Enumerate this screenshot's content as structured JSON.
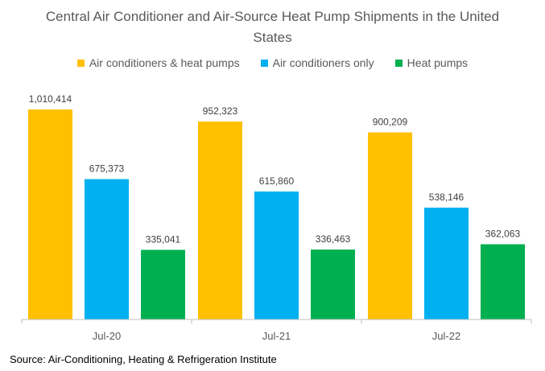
{
  "chart_data": {
    "type": "bar",
    "title": "Central Air Conditioner and Air-Source Heat Pump Shipments in the United States",
    "categories": [
      "Jul-20",
      "Jul-21",
      "Jul-22"
    ],
    "series": [
      {
        "name": "Air conditioners & heat pumps",
        "color": "#FFC000",
        "values": [
          1010414,
          952323,
          900209
        ],
        "labels": [
          "1,010,414",
          "952,323",
          "900,209"
        ]
      },
      {
        "name": "Air conditioners only",
        "color": "#00B0F0",
        "values": [
          675373,
          615860,
          538146
        ],
        "labels": [
          "675,373",
          "615,860",
          "538,146"
        ]
      },
      {
        "name": "Heat pumps",
        "color": "#00B050",
        "values": [
          335041,
          336463,
          362063
        ],
        "labels": [
          "335,041",
          "336,463",
          "362,063"
        ]
      }
    ],
    "ylim": [
      0,
      1150000
    ],
    "grid": false,
    "legend_position": "top"
  },
  "source": "Source: Air-Conditioning, Heating & Refrigeration Institute"
}
